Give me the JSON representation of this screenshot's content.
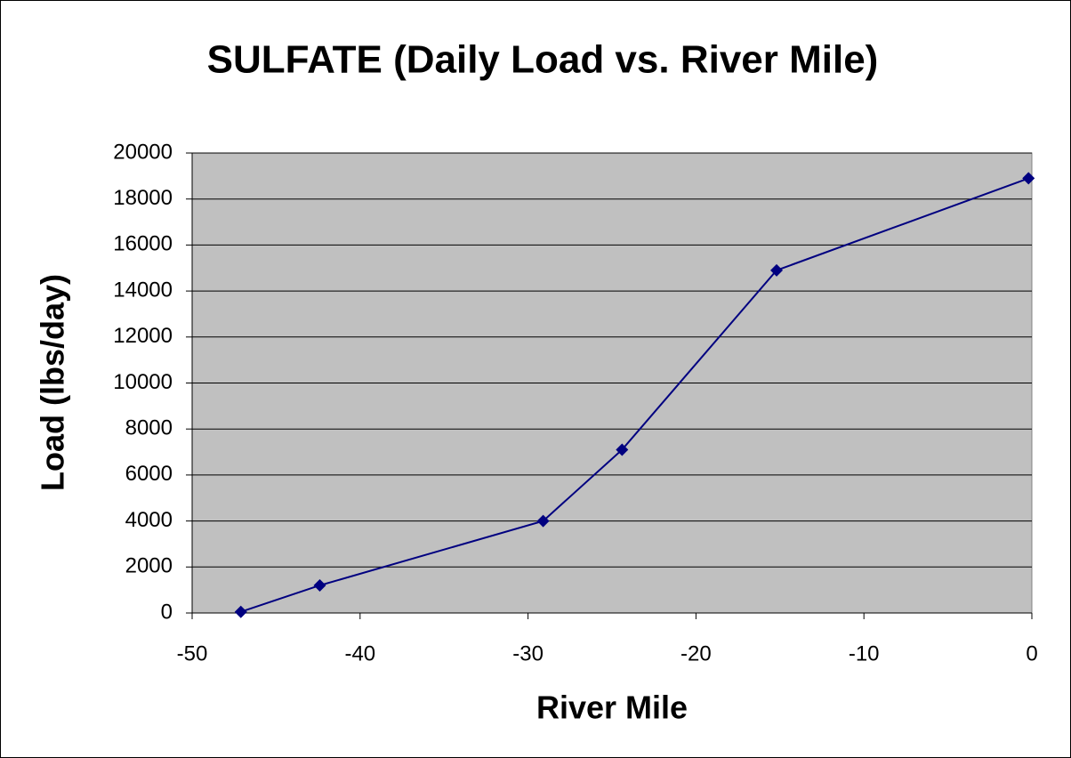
{
  "chart_data": {
    "type": "line",
    "title": "SULFATE (Daily Load vs. River Mile)",
    "x_label": "River Mile",
    "y_label": "Load  (lbs/day)",
    "x": [
      -47.1,
      -42.4,
      -29.1,
      -24.4,
      -15.2,
      -0.2
    ],
    "values": [
      50,
      1200,
      4000,
      7100,
      14900,
      18900
    ],
    "color": "#000080",
    "xlim": [
      -50,
      0
    ],
    "xticks": [
      -50,
      -40,
      -30,
      -20,
      -10,
      0
    ],
    "ylim": [
      0,
      20000
    ],
    "yticks": [
      0,
      2000,
      4000,
      6000,
      8000,
      10000,
      12000,
      14000,
      16000,
      18000,
      20000
    ],
    "grid": true
  }
}
